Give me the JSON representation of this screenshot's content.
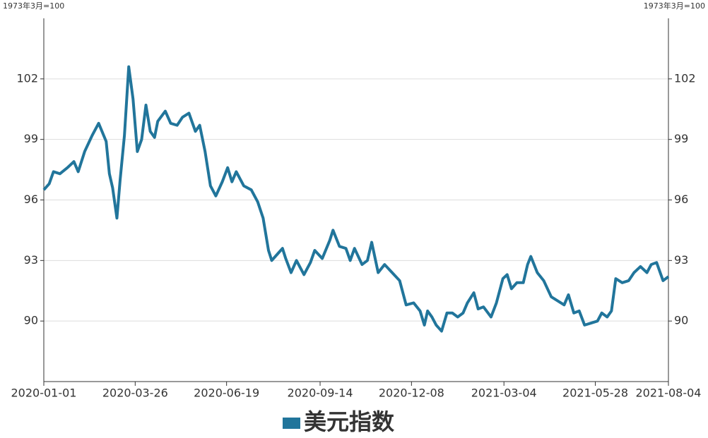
{
  "chart_data": {
    "type": "line",
    "y_unit": "1973年3月=100",
    "x": [
      "2020-01-01",
      "2020-01-06",
      "2020-01-10",
      "2020-01-16",
      "2020-01-23",
      "2020-01-29",
      "2020-02-02",
      "2020-02-08",
      "2020-02-15",
      "2020-02-21",
      "2020-02-28",
      "2020-03-02",
      "2020-03-05",
      "2020-03-09",
      "2020-03-12",
      "2020-03-16",
      "2020-03-20",
      "2020-03-24",
      "2020-03-28",
      "2020-04-01",
      "2020-04-05",
      "2020-04-09",
      "2020-04-13",
      "2020-04-16",
      "2020-04-23",
      "2020-04-28",
      "2020-05-04",
      "2020-05-09",
      "2020-05-15",
      "2020-05-21",
      "2020-05-25",
      "2020-05-30",
      "2020-06-04",
      "2020-06-09",
      "2020-06-15",
      "2020-06-20",
      "2020-06-24",
      "2020-06-28",
      "2020-07-05",
      "2020-07-12",
      "2020-07-18",
      "2020-07-23",
      "2020-07-28",
      "2020-07-31",
      "2020-08-05",
      "2020-08-10",
      "2020-08-13",
      "2020-08-18",
      "2020-08-23",
      "2020-08-30",
      "2020-09-05",
      "2020-09-09",
      "2020-09-16",
      "2020-09-23",
      "2020-09-26",
      "2020-10-02",
      "2020-10-08",
      "2020-10-12",
      "2020-10-16",
      "2020-10-23",
      "2020-10-28",
      "2020-11-01",
      "2020-11-07",
      "2020-11-13",
      "2020-11-20",
      "2020-11-27",
      "2020-12-03",
      "2020-12-10",
      "2020-12-16",
      "2020-12-20",
      "2020-12-23",
      "2020-12-27",
      "2020-12-31",
      "2021-01-05",
      "2021-01-10",
      "2021-01-15",
      "2021-01-20",
      "2021-01-25",
      "2021-01-29",
      "2021-02-04",
      "2021-02-08",
      "2021-02-13",
      "2021-02-20",
      "2021-02-25",
      "2021-03-03",
      "2021-03-07",
      "2021-03-11",
      "2021-03-16",
      "2021-03-22",
      "2021-03-26",
      "2021-03-29",
      "2021-04-04",
      "2021-04-10",
      "2021-04-17",
      "2021-04-23",
      "2021-04-29",
      "2021-05-03",
      "2021-05-08",
      "2021-05-13",
      "2021-05-18",
      "2021-05-24",
      "2021-05-30",
      "2021-06-03",
      "2021-06-08",
      "2021-06-12",
      "2021-06-16",
      "2021-06-22",
      "2021-06-28",
      "2021-07-03",
      "2021-07-09",
      "2021-07-15",
      "2021-07-19",
      "2021-07-24",
      "2021-07-30",
      "2021-08-04"
    ],
    "series": [
      {
        "name": "美元指数",
        "color": "#21759b",
        "values": [
          96.5,
          96.8,
          97.4,
          97.3,
          97.6,
          97.9,
          97.4,
          98.4,
          99.2,
          99.8,
          98.9,
          97.3,
          96.6,
          95.1,
          97.0,
          99.2,
          102.6,
          101.0,
          98.4,
          99.0,
          100.7,
          99.4,
          99.1,
          99.9,
          100.4,
          99.8,
          99.7,
          100.1,
          100.3,
          99.4,
          99.7,
          98.4,
          96.7,
          96.2,
          96.9,
          97.6,
          96.9,
          97.4,
          96.7,
          96.5,
          95.9,
          95.1,
          93.5,
          93.0,
          93.3,
          93.6,
          93.1,
          92.4,
          93.0,
          92.3,
          92.9,
          93.5,
          93.1,
          94.0,
          94.5,
          93.7,
          93.6,
          93.0,
          93.6,
          92.8,
          93.0,
          93.9,
          92.4,
          92.8,
          92.4,
          92.0,
          90.8,
          90.9,
          90.5,
          89.8,
          90.5,
          90.2,
          89.8,
          89.5,
          90.4,
          90.4,
          90.2,
          90.4,
          90.9,
          91.4,
          90.6,
          90.7,
          90.2,
          90.9,
          92.1,
          92.3,
          91.6,
          91.9,
          91.9,
          92.8,
          93.2,
          92.4,
          92.0,
          91.2,
          91.0,
          90.8,
          91.3,
          90.4,
          90.5,
          89.8,
          89.9,
          90.0,
          90.4,
          90.2,
          90.5,
          92.1,
          91.9,
          92.0,
          92.4,
          92.7,
          92.4,
          92.8,
          92.9,
          92.0,
          92.2
        ]
      }
    ],
    "xlim": [
      "2020-01-01",
      "2021-08-04"
    ],
    "xticks": [
      "2020-01-01",
      "2020-03-26",
      "2020-06-19",
      "2020-09-14",
      "2020-12-08",
      "2021-03-04",
      "2021-05-28",
      "2021-08-04"
    ],
    "ylim": [
      87,
      105
    ],
    "yticks": [
      90,
      93,
      96,
      99,
      102
    ],
    "grid": true
  }
}
